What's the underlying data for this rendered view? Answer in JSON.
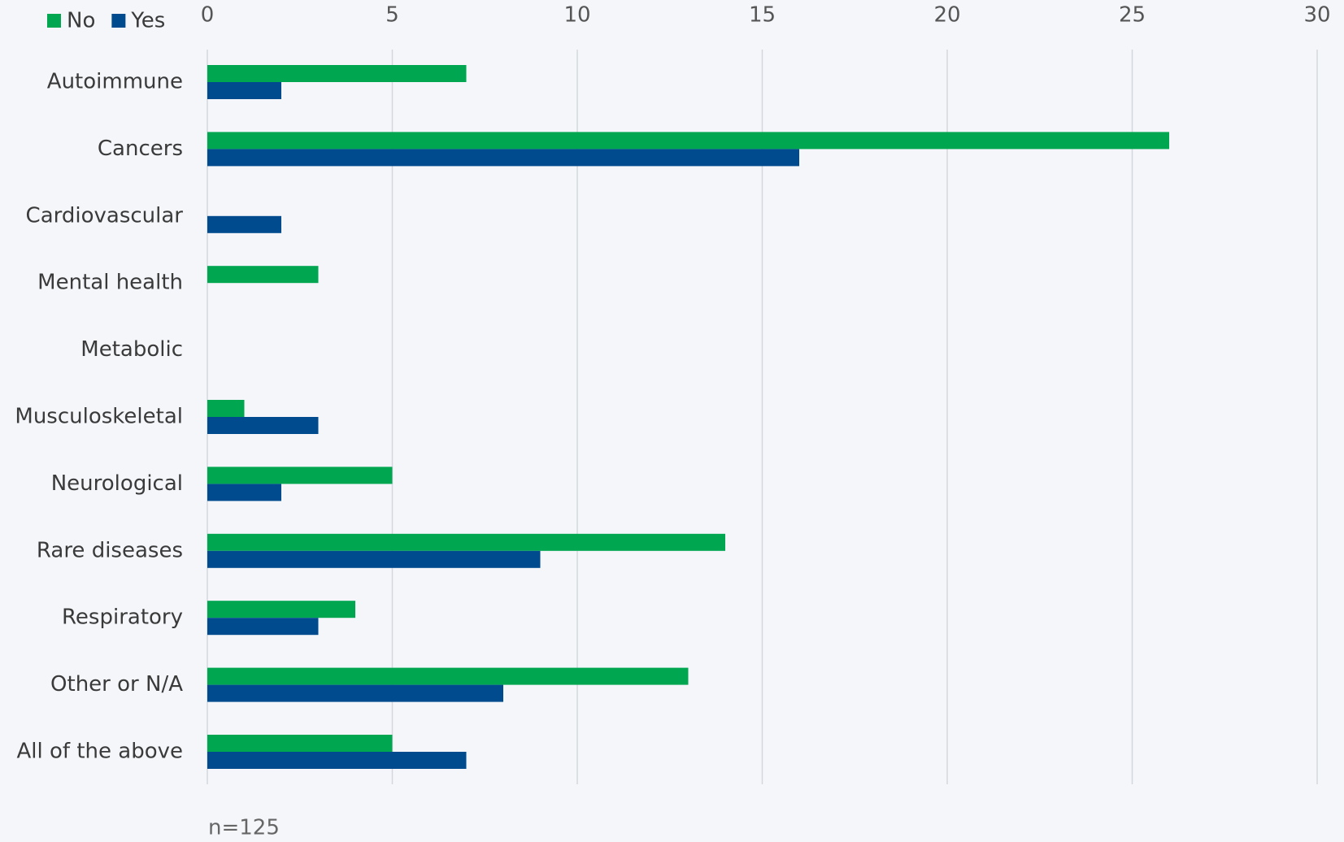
{
  "chart_data": {
    "type": "hbar",
    "categories": [
      "Autoimmune",
      "Cancers",
      "Cardiovascular",
      "Mental health",
      "Metabolic",
      "Musculoskeletal",
      "Neurological",
      "Rare diseases",
      "Respiratory",
      "Other or N/A",
      "All of the above"
    ],
    "series": [
      {
        "name": "No",
        "color": "#00a650",
        "values": [
          7,
          26,
          0,
          3,
          0,
          1,
          5,
          14,
          4,
          13,
          5
        ]
      },
      {
        "name": "Yes",
        "color": "#004b8d",
        "values": [
          2,
          16,
          2,
          0,
          0,
          3,
          2,
          9,
          3,
          8,
          7
        ]
      }
    ],
    "xlim": [
      0,
      30
    ],
    "xticks": [
      0,
      5,
      10,
      15,
      20,
      25,
      30
    ],
    "grid": true,
    "legend": "top-left",
    "note": "n=125"
  }
}
